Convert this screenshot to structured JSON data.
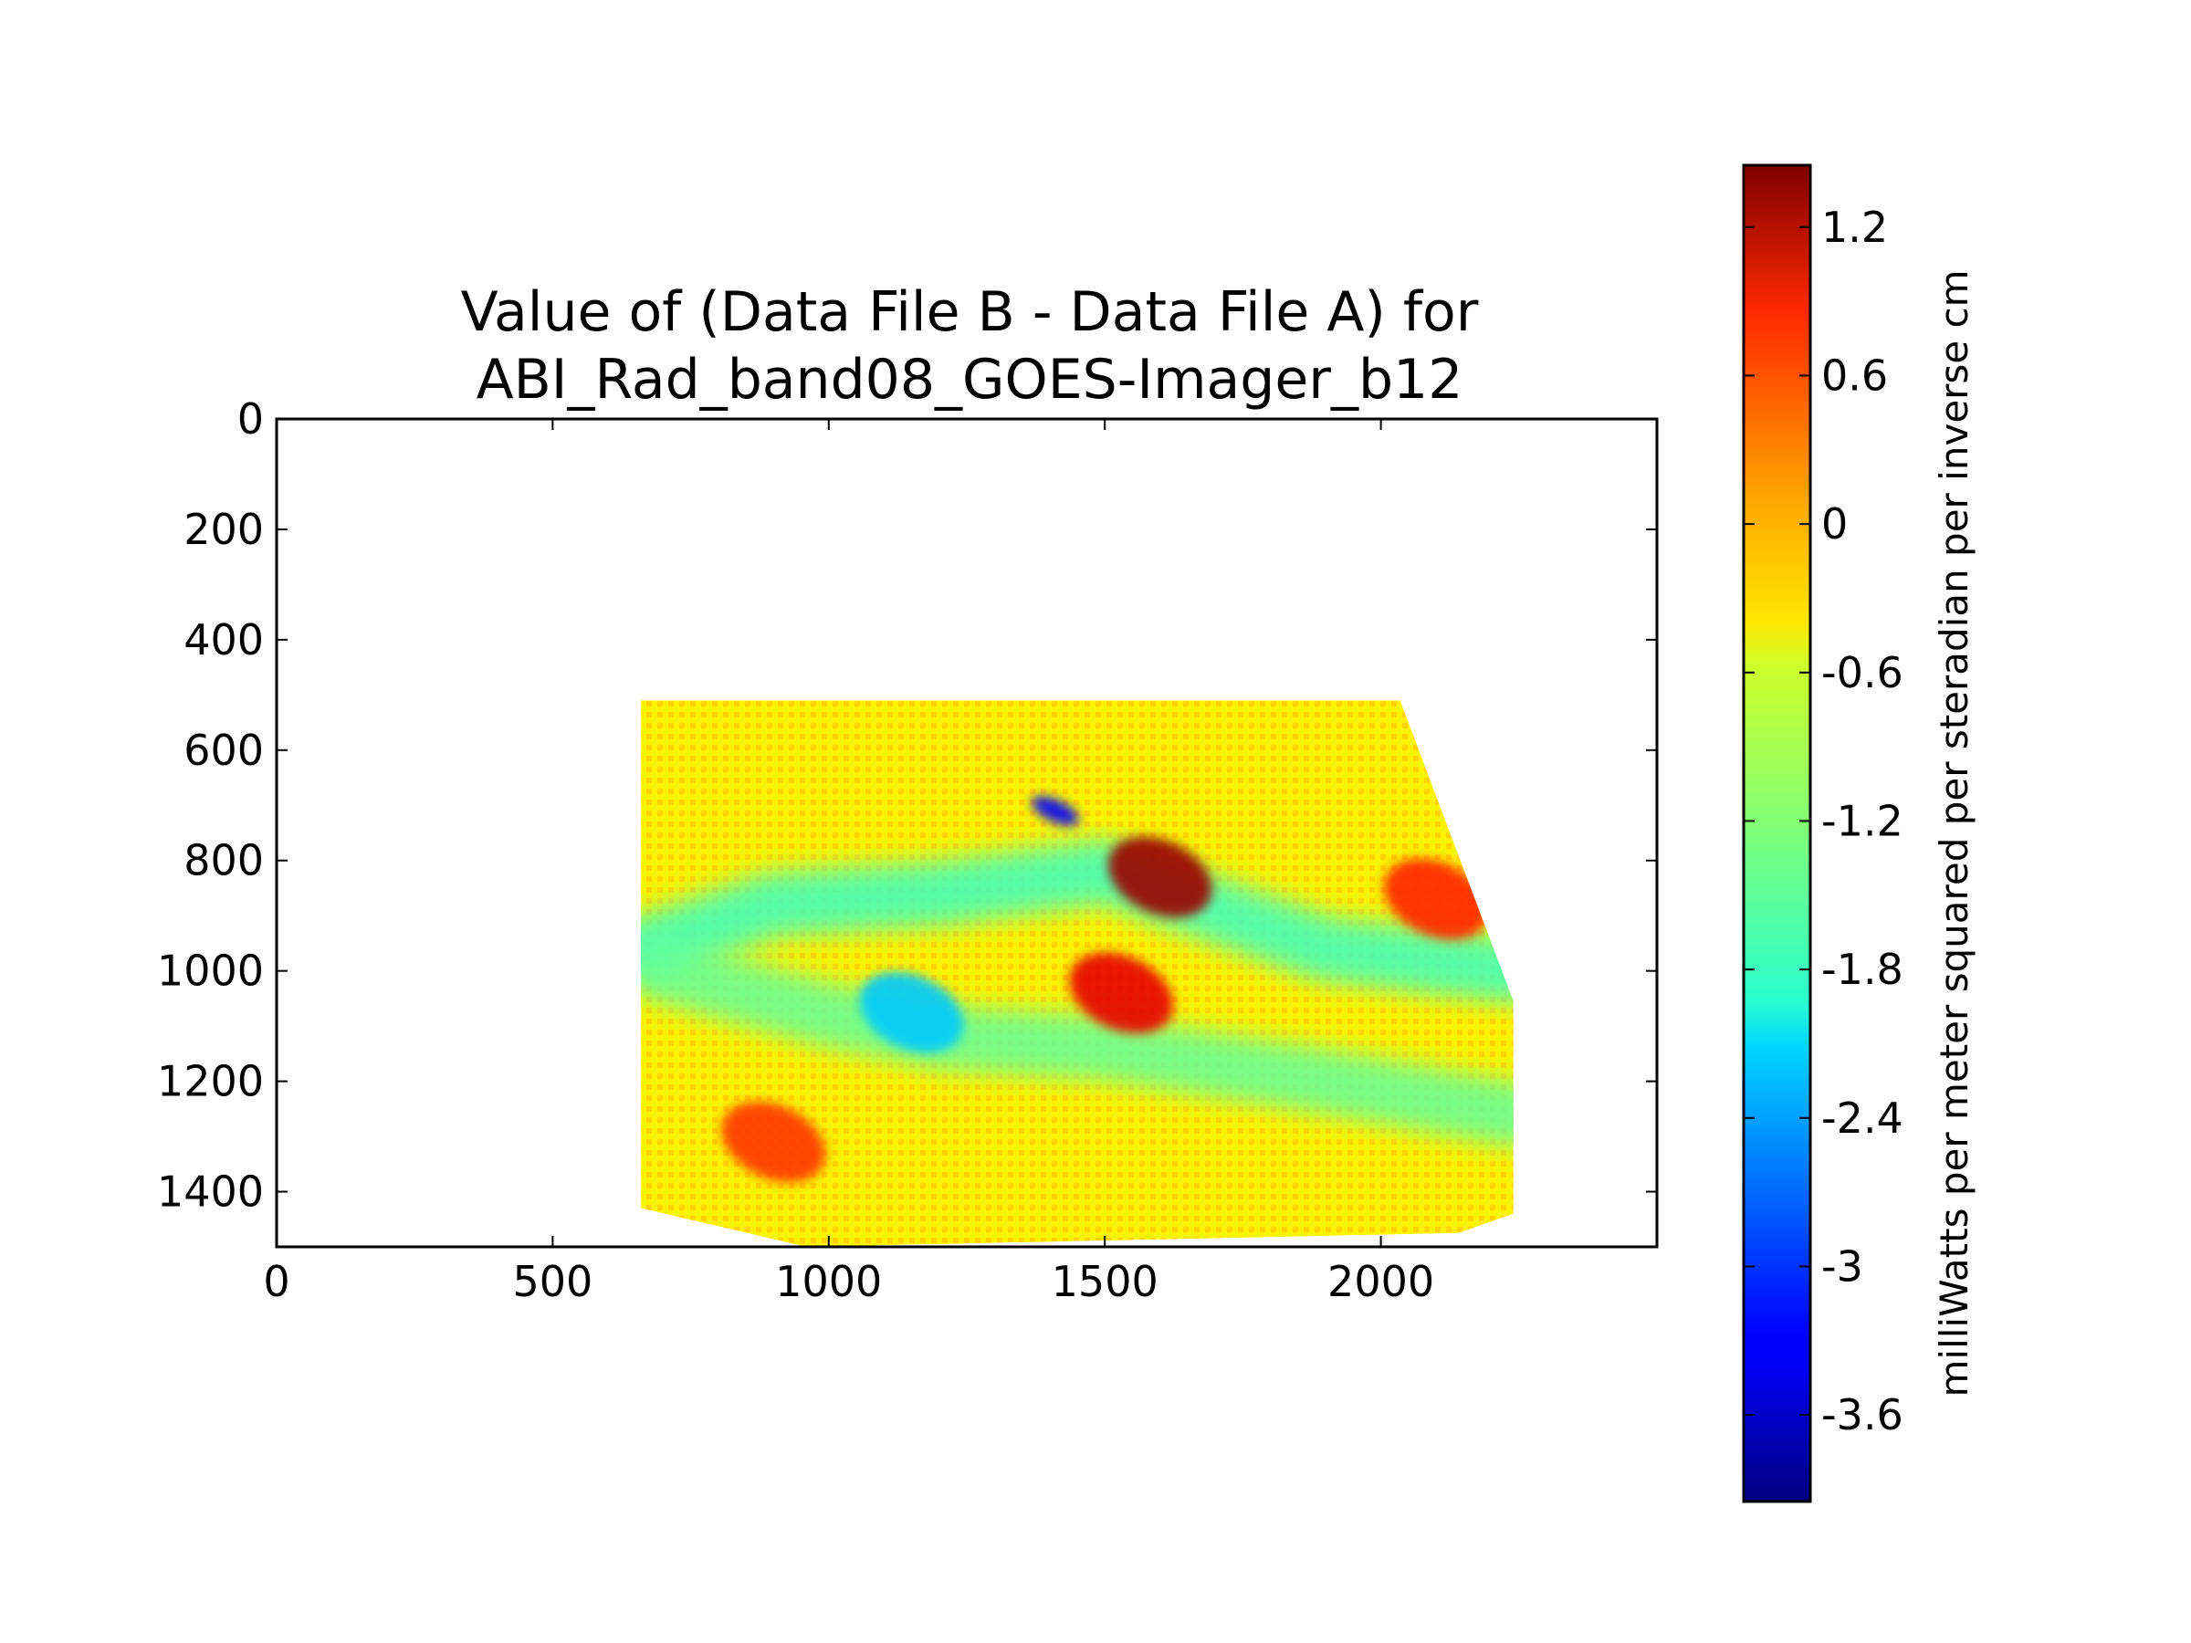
{
  "chart_data": {
    "type": "heatmap",
    "title": [
      "Value of (Data File B - Data File A) for",
      "ABI_Rad_band08_GOES-Imager_b12"
    ],
    "xlabel": "",
    "ylabel": "",
    "xlim": [
      0,
      2500
    ],
    "ylim": [
      1500,
      0
    ],
    "x_ticks": [
      0,
      500,
      1000,
      1500,
      2000
    ],
    "x_tick_labels": [
      "0",
      "500",
      "1000",
      "1500",
      "2000"
    ],
    "y_ticks": [
      0,
      200,
      400,
      600,
      800,
      1000,
      1200,
      1400
    ],
    "y_tick_labels": [
      "0",
      "200",
      "400",
      "600",
      "800",
      "1000",
      "1200",
      "1400"
    ],
    "y_inverted": true,
    "data_region": {
      "polygon": [
        [
          660,
          510
        ],
        [
          2035,
          510
        ],
        [
          2240,
          1055
        ],
        [
          2240,
          1440
        ],
        [
          2140,
          1475
        ],
        [
          960,
          1500
        ],
        [
          660,
          1430
        ]
      ],
      "background_value": -0.5,
      "features": [
        {
          "kind": "band",
          "points": [
            [
              660,
              960
            ],
            [
              900,
              880
            ],
            [
              1200,
              860
            ],
            [
              1500,
              820
            ],
            [
              1900,
              960
            ],
            [
              2240,
              1000
            ]
          ],
          "value": -1.6
        },
        {
          "kind": "band",
          "points": [
            [
              700,
              1000
            ],
            [
              1000,
              1080
            ],
            [
              1200,
              1120
            ],
            [
              1500,
              1140
            ],
            [
              1900,
              1200
            ],
            [
              2240,
              1260
            ]
          ],
          "value": -1.4
        },
        {
          "kind": "blob",
          "center": [
            1600,
            830
          ],
          "value": 1.3
        },
        {
          "kind": "blob",
          "center": [
            1530,
            1040
          ],
          "value": 0.9
        },
        {
          "kind": "blob",
          "center": [
            1410,
            710
          ],
          "value": -3.3
        },
        {
          "kind": "blob",
          "center": [
            2100,
            870
          ],
          "value": 0.6
        },
        {
          "kind": "blob",
          "center": [
            900,
            1310
          ],
          "value": 0.5
        },
        {
          "kind": "blob",
          "center": [
            1150,
            1075
          ],
          "value": -2.2
        }
      ]
    },
    "colorbar": {
      "colormap": "jet",
      "vmin": -3.95,
      "vmax": 1.45,
      "ticks": [
        1.2,
        0.6,
        0,
        -0.6,
        -1.2,
        -1.8,
        -2.4,
        -3,
        -3.6
      ],
      "tick_labels": [
        "1.2",
        "0.6",
        "0",
        "-0.6",
        "-1.2",
        "-1.8",
        "-2.4",
        "-3",
        "-3.6"
      ],
      "label": "milliWatts per meter squared per steradian per inverse cm"
    },
    "grid": false
  }
}
